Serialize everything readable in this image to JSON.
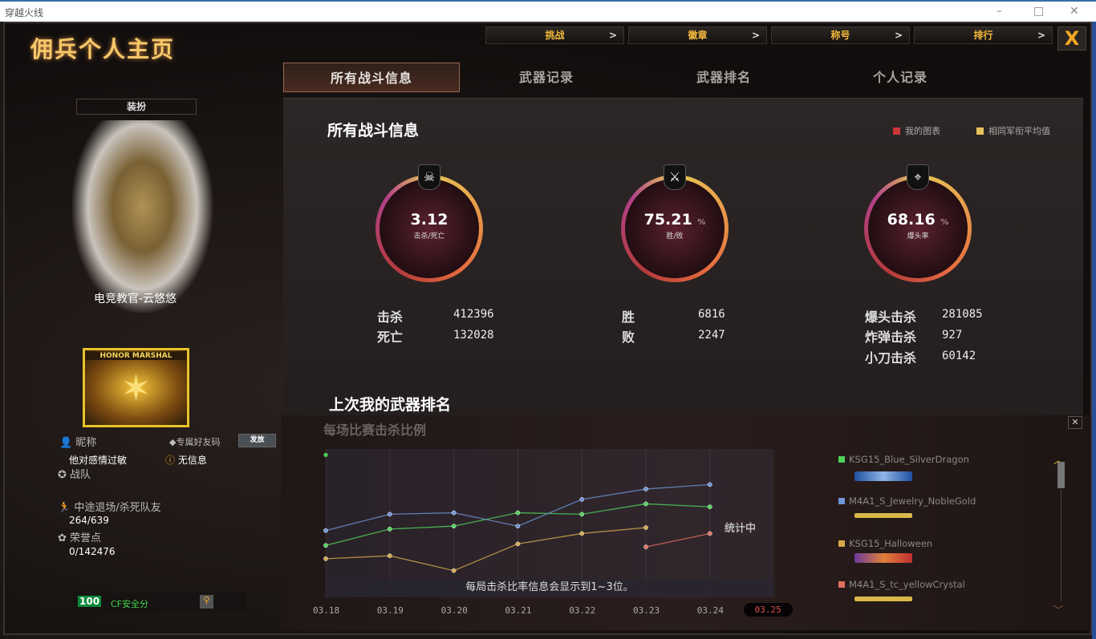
{
  "window": {
    "title": "穿越火线",
    "min": "–",
    "max": "□",
    "close": "✕"
  },
  "app_title": "佣兵个人主页",
  "nav": [
    {
      "label": "挑战"
    },
    {
      "label": "徽章"
    },
    {
      "label": "称号"
    },
    {
      "label": "排行"
    }
  ],
  "nav_arrow": ">",
  "close_label": "X",
  "tabs": [
    {
      "label": "所有战斗信息",
      "active": true
    },
    {
      "label": "武器记录"
    },
    {
      "label": "武器排名"
    },
    {
      "label": "个人记录"
    }
  ],
  "left": {
    "dress_button": "装扮",
    "character_name": "电竞教官-云悠悠",
    "rank_badge": "HONOR MARSHAL",
    "nickname_label": "昵称",
    "nickname": "他对感情过敏",
    "friend_code_label": "专属好友码",
    "send_button": "发放",
    "friend_code_value": "无信息",
    "clan_label": "战队",
    "quit_label": "中途退场/杀死队友",
    "quit_value": "264/639",
    "honor_label": "荣誉点",
    "honor_value": "0/142476",
    "security_score": "100",
    "security_label": "CF安全分"
  },
  "stats": {
    "title": "所有战斗信息",
    "legend_mine": "我的图表",
    "legend_avg": "相同军衔平均值",
    "colors": {
      "mine": "#c8383a",
      "avg": "#e6c35a"
    },
    "circles": [
      {
        "icon": "skull-icon",
        "value": "3.12",
        "unit": "",
        "label": "击杀/死亡"
      },
      {
        "icon": "crossed-guns-icon",
        "value": "75.21",
        "unit": "%",
        "label": "胜/败"
      },
      {
        "icon": "headshot-icon",
        "value": "68.16",
        "unit": "%",
        "label": "爆头率"
      }
    ],
    "kd": [
      {
        "label": "击杀",
        "value": "412396"
      },
      {
        "label": "死亡",
        "value": "132028"
      }
    ],
    "wl": [
      {
        "label": "胜",
        "value": "6816"
      },
      {
        "label": "败",
        "value": "2247"
      }
    ],
    "special": [
      {
        "label": "爆头击杀",
        "value": "281085"
      },
      {
        "label": "炸弹击杀",
        "value": "927"
      },
      {
        "label": "小刀击杀",
        "value": "60142"
      }
    ]
  },
  "weapon_rank": {
    "title": "上次我的武器排名",
    "subtitle": "每场比赛击杀比例",
    "pending": "统计中",
    "note": "每局击杀比率信息会显示到1~3位。",
    "close": "✕"
  },
  "chart_data": {
    "type": "line",
    "title": "每场比赛击杀比例",
    "categories": [
      "03.18",
      "03.19",
      "03.20",
      "03.21",
      "03.22",
      "03.23",
      "03.24",
      "03.25"
    ],
    "selected": "03.25",
    "y_axis": "unlabeled (relative 0-100)",
    "ylim": [
      0,
      100
    ],
    "grid": "vertical",
    "series": [
      {
        "name": "KSG15_Blue_SilverDragon",
        "color": "#4fd35a",
        "values": [
          35,
          46,
          48,
          57,
          56,
          63,
          61,
          null
        ],
        "extra_point": {
          "x": "03.18",
          "y": 96
        }
      },
      {
        "name": "M4A1_S_Jewelry_NobleGold",
        "color": "#6f95d6",
        "values": [
          45,
          56,
          57,
          48,
          66,
          73,
          76,
          null
        ]
      },
      {
        "name": "KSG15_Halloween",
        "color": "#d3a84a",
        "values": [
          26,
          28,
          18,
          36,
          43,
          47,
          null,
          null
        ]
      },
      {
        "name": "M4A1_S_tc_yellowCrystal",
        "color": "#e0705e",
        "values": [
          null,
          null,
          null,
          null,
          null,
          34,
          43,
          null
        ]
      }
    ]
  }
}
